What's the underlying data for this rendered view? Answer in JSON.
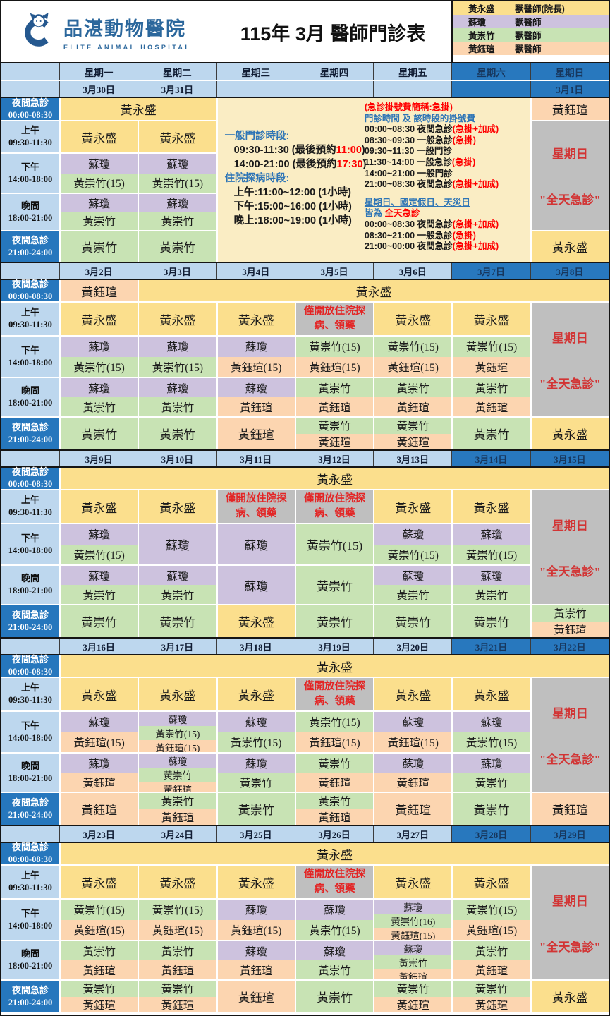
{
  "header": {
    "clinic_name": "品湛動物醫院",
    "clinic_name_en": "ELITE ANIMAL HOSPITAL",
    "title": "115年 3月 醫師門診表",
    "legend": [
      {
        "name": "黃永盛",
        "role": "獸醫師(院長)",
        "color": "yellow"
      },
      {
        "name": "蘇瓊",
        "role": "獸醫師",
        "color": "purple"
      },
      {
        "name": "黃崇竹",
        "role": "獸醫師",
        "color": "green"
      },
      {
        "name": "黃鈺瑄",
        "role": "獸醫師",
        "color": "orange"
      }
    ]
  },
  "palette": {
    "yellow": "#FBDF8D",
    "purple": "#CDC2DE",
    "green": "#C8E3B4",
    "orange": "#FCD5B0",
    "gray": "#BFBFBF",
    "lightblue": "#BDD7EE",
    "darkblue": "#2878BE"
  },
  "weekday_headers": [
    "星期一",
    "星期二",
    "星期三",
    "星期四",
    "星期五",
    "星期六",
    "星期日"
  ],
  "row_labels": [
    {
      "l1": "夜間急診",
      "l2": "00:00-08:30",
      "dark": true
    },
    {
      "l1": "上午",
      "l2": "09:30-11:30",
      "dark": false
    },
    {
      "l1": "下午",
      "l2": "14:00-18:00",
      "dark": false
    },
    {
      "l1": "晚間",
      "l2": "18:00-21:00",
      "dark": false
    },
    {
      "l1": "夜間急診",
      "l2": "21:00-24:00",
      "dark": true
    }
  ],
  "doctors": {
    "Y": {
      "name": "黃永盛",
      "color": "yellow"
    },
    "S": {
      "name": "蘇瓊",
      "color": "purple"
    },
    "C": {
      "name": "黃崇竹",
      "color": "green"
    },
    "C15": {
      "name": "黃崇竹(15)",
      "color": "green"
    },
    "C16": {
      "name": "黃崇竹(16)",
      "color": "green"
    },
    "X": {
      "name": "黃鈺瑄",
      "color": "orange"
    },
    "X15": {
      "name": "黃鈺瑄(15)",
      "color": "orange"
    }
  },
  "cells": {
    "closed_text": "僅開放住院探病、領藥",
    "sunday_lines": [
      "星期日",
      "\"全天急診\""
    ]
  },
  "info_box": {
    "left_lines": [
      {
        "indent": false,
        "spans": [
          [
            "一般門診時段:",
            "blue"
          ]
        ]
      },
      {
        "indent": true,
        "spans": [
          [
            "09:30-11:30 (最後預約",
            "black"
          ],
          [
            "11:00",
            "red"
          ],
          [
            ")",
            "black"
          ]
        ]
      },
      {
        "indent": true,
        "spans": [
          [
            "14:00-21:00 (最後預約",
            "black"
          ],
          [
            "17:30",
            "red"
          ],
          [
            ")",
            "black"
          ]
        ]
      },
      {
        "indent": false,
        "spans": [
          [
            "住院探病時段:",
            "blue"
          ]
        ]
      },
      {
        "indent": true,
        "spans": [
          [
            "上午:11:00~12:00 (1小時)",
            "black"
          ]
        ]
      },
      {
        "indent": true,
        "spans": [
          [
            "下午:15:00~16:00 (1小時)",
            "black"
          ]
        ]
      },
      {
        "indent": true,
        "spans": [
          [
            "晚上:18:00~19:00 (1小時)",
            "black"
          ]
        ]
      }
    ],
    "right_lines": [
      {
        "indent": false,
        "spans": [
          [
            "(急診掛號費簡稱:急掛)",
            "red"
          ]
        ]
      },
      {
        "indent": false,
        "spans": [
          [
            "門診時間 及 該時段的掛號費",
            "blue"
          ]
        ]
      },
      {
        "indent": false,
        "spans": [
          [
            "00:00~08:30 夜間急診",
            "black"
          ],
          [
            "(急掛+加成)",
            "red"
          ]
        ]
      },
      {
        "indent": false,
        "spans": [
          [
            "08:30~09:30 一般急診",
            "black"
          ],
          [
            "(急掛)",
            "red"
          ]
        ]
      },
      {
        "indent": false,
        "spans": [
          [
            "09:30~11:30 一般門診",
            "black"
          ]
        ]
      },
      {
        "indent": false,
        "spans": [
          [
            "11:30~14:00 一般急診",
            "black"
          ],
          [
            "(急掛)",
            "red"
          ]
        ]
      },
      {
        "indent": false,
        "spans": [
          [
            "14:00~21:00 一般門診",
            "black"
          ]
        ]
      },
      {
        "indent": false,
        "spans": [
          [
            "21:00~08:30 夜間急診",
            "black"
          ],
          [
            "(急掛+加成)",
            "red"
          ]
        ]
      },
      {
        "indent": false,
        "spans": []
      },
      {
        "indent": false,
        "spans": [
          [
            "星期日、國定假日、天災日",
            "blueU"
          ]
        ]
      },
      {
        "indent": false,
        "spans": [
          [
            "皆為 ",
            "blue"
          ],
          [
            "全天急診",
            "redU"
          ]
        ]
      },
      {
        "indent": false,
        "spans": [
          [
            "00:00~08:30 夜間急診",
            "black"
          ],
          [
            "(急掛+加成)",
            "red"
          ]
        ]
      },
      {
        "indent": false,
        "spans": [
          [
            "08:30~21:00 一般急診",
            "black"
          ],
          [
            "(急掛)",
            "red"
          ]
        ]
      },
      {
        "indent": false,
        "spans": [
          [
            "21:00~00:00 夜間急診",
            "black"
          ],
          [
            "(急掛+加成)",
            "red"
          ]
        ]
      }
    ]
  },
  "weeks": [
    {
      "dates": [
        "3月30日",
        "3月31日",
        "",
        "",
        "",
        "",
        "3月1日"
      ],
      "rows": [
        [
          {
            "c": 0,
            "s": 2,
            "p": [
              "Y"
            ]
          },
          {
            "c": 2,
            "s": 4,
            "r": 5,
            "t": "info"
          },
          {
            "c": 6,
            "p": [
              "X"
            ]
          }
        ],
        [
          {
            "c": 0,
            "p": [
              "Y"
            ]
          },
          {
            "c": 1,
            "p": [
              "Y"
            ]
          },
          {
            "c": 6,
            "r": 3,
            "t": "sunday"
          }
        ],
        [
          {
            "c": 0,
            "p": [
              "S",
              "C15"
            ]
          },
          {
            "c": 1,
            "p": [
              "S",
              "C15"
            ]
          }
        ],
        [
          {
            "c": 0,
            "p": [
              "S",
              "C"
            ]
          },
          {
            "c": 1,
            "p": [
              "S",
              "C"
            ]
          }
        ],
        [
          {
            "c": 0,
            "p": [
              "C"
            ]
          },
          {
            "c": 1,
            "p": [
              "C"
            ]
          },
          {
            "c": 6,
            "p": [
              "Y"
            ]
          }
        ]
      ]
    },
    {
      "dates": [
        "3月2日",
        "3月3日",
        "3月4日",
        "3月5日",
        "3月6日",
        "3月7日",
        "3月8日"
      ],
      "rows": [
        [
          {
            "c": 0,
            "p": [
              "X"
            ]
          },
          {
            "c": 1,
            "s": 6,
            "p": [
              "Y"
            ]
          }
        ],
        [
          {
            "c": 0,
            "p": [
              "Y"
            ]
          },
          {
            "c": 1,
            "p": [
              "Y"
            ]
          },
          {
            "c": 2,
            "p": [
              "Y"
            ]
          },
          {
            "c": 3,
            "t": "closed"
          },
          {
            "c": 4,
            "p": [
              "Y"
            ]
          },
          {
            "c": 5,
            "p": [
              "Y"
            ]
          },
          {
            "c": 6,
            "r": 3,
            "t": "sunday"
          }
        ],
        [
          {
            "c": 0,
            "p": [
              "S",
              "C15"
            ]
          },
          {
            "c": 1,
            "p": [
              "S",
              "C15"
            ]
          },
          {
            "c": 2,
            "p": [
              "S",
              "X15"
            ]
          },
          {
            "c": 3,
            "p": [
              "C15",
              "X15"
            ]
          },
          {
            "c": 4,
            "p": [
              "C15",
              "X15"
            ]
          },
          {
            "c": 5,
            "p": [
              "C15",
              "X"
            ]
          }
        ],
        [
          {
            "c": 0,
            "p": [
              "S",
              "C"
            ]
          },
          {
            "c": 1,
            "p": [
              "S",
              "C"
            ]
          },
          {
            "c": 2,
            "p": [
              "S",
              "X"
            ]
          },
          {
            "c": 3,
            "p": [
              "C",
              "X"
            ]
          },
          {
            "c": 4,
            "p": [
              "C",
              "X"
            ]
          },
          {
            "c": 5,
            "p": [
              "C",
              "X"
            ]
          }
        ],
        [
          {
            "c": 0,
            "p": [
              "C"
            ]
          },
          {
            "c": 1,
            "p": [
              "C"
            ]
          },
          {
            "c": 2,
            "p": [
              "X"
            ]
          },
          {
            "c": 3,
            "p": [
              "C",
              "X"
            ]
          },
          {
            "c": 4,
            "p": [
              "C",
              "X"
            ]
          },
          {
            "c": 5,
            "p": [
              "C"
            ]
          },
          {
            "c": 6,
            "p": [
              "Y"
            ]
          }
        ]
      ]
    },
    {
      "dates": [
        "3月9日",
        "3月10日",
        "3月11日",
        "3月12日",
        "3月13日",
        "3月14日",
        "3月15日"
      ],
      "rows": [
        [
          {
            "c": 0,
            "s": 7,
            "p": [
              "Y"
            ]
          }
        ],
        [
          {
            "c": 0,
            "p": [
              "Y"
            ]
          },
          {
            "c": 1,
            "p": [
              "Y"
            ]
          },
          {
            "c": 2,
            "t": "closed"
          },
          {
            "c": 3,
            "t": "closed"
          },
          {
            "c": 4,
            "p": [
              "Y"
            ]
          },
          {
            "c": 5,
            "p": [
              "Y"
            ]
          },
          {
            "c": 6,
            "r": 3,
            "t": "sunday"
          }
        ],
        [
          {
            "c": 0,
            "p": [
              "S",
              "C15"
            ]
          },
          {
            "c": 1,
            "p": [
              "S"
            ]
          },
          {
            "c": 2,
            "p": [
              "S"
            ]
          },
          {
            "c": 3,
            "p": [
              "C15"
            ]
          },
          {
            "c": 4,
            "p": [
              "S",
              "C15"
            ]
          },
          {
            "c": 5,
            "p": [
              "S",
              "C15"
            ]
          }
        ],
        [
          {
            "c": 0,
            "p": [
              "S",
              "C"
            ]
          },
          {
            "c": 1,
            "p": [
              "S",
              "C"
            ]
          },
          {
            "c": 2,
            "p": [
              "S"
            ]
          },
          {
            "c": 3,
            "p": [
              "C"
            ]
          },
          {
            "c": 4,
            "p": [
              "S",
              "C"
            ]
          },
          {
            "c": 5,
            "p": [
              "S",
              "C"
            ]
          }
        ],
        [
          {
            "c": 0,
            "p": [
              "C"
            ]
          },
          {
            "c": 1,
            "p": [
              "C"
            ]
          },
          {
            "c": 2,
            "p": [
              "Y"
            ]
          },
          {
            "c": 3,
            "p": [
              "C"
            ]
          },
          {
            "c": 4,
            "p": [
              "C"
            ]
          },
          {
            "c": 5,
            "p": [
              "C"
            ]
          },
          {
            "c": 6,
            "p": [
              "C",
              "X"
            ]
          }
        ]
      ]
    },
    {
      "dates": [
        "3月16日",
        "3月17日",
        "3月18日",
        "3月19日",
        "3月20日",
        "3月21日",
        "3月22日"
      ],
      "rows": [
        [
          {
            "c": 0,
            "s": 7,
            "p": [
              "Y"
            ]
          }
        ],
        [
          {
            "c": 0,
            "p": [
              "Y"
            ]
          },
          {
            "c": 1,
            "p": [
              "Y"
            ]
          },
          {
            "c": 2,
            "p": [
              "Y"
            ]
          },
          {
            "c": 3,
            "t": "closed"
          },
          {
            "c": 4,
            "p": [
              "Y"
            ]
          },
          {
            "c": 5,
            "p": [
              "Y"
            ]
          },
          {
            "c": 6,
            "r": 3,
            "t": "sunday"
          }
        ],
        [
          {
            "c": 0,
            "p": [
              "S",
              "X15"
            ]
          },
          {
            "c": 1,
            "p": [
              "S",
              "C15",
              "X15"
            ]
          },
          {
            "c": 2,
            "p": [
              "S",
              "C15"
            ]
          },
          {
            "c": 3,
            "p": [
              "C15",
              "X15"
            ]
          },
          {
            "c": 4,
            "p": [
              "S",
              "X15"
            ]
          },
          {
            "c": 5,
            "p": [
              "S",
              "C15"
            ]
          }
        ],
        [
          {
            "c": 0,
            "p": [
              "S",
              "X"
            ]
          },
          {
            "c": 1,
            "p": [
              "S",
              "C",
              "X"
            ]
          },
          {
            "c": 2,
            "p": [
              "S",
              "C"
            ]
          },
          {
            "c": 3,
            "p": [
              "C",
              "X"
            ]
          },
          {
            "c": 4,
            "p": [
              "S",
              "X"
            ]
          },
          {
            "c": 5,
            "p": [
              "S",
              "C"
            ]
          }
        ],
        [
          {
            "c": 0,
            "p": [
              "X"
            ]
          },
          {
            "c": 1,
            "p": [
              "C",
              "X"
            ]
          },
          {
            "c": 2,
            "p": [
              "C"
            ]
          },
          {
            "c": 3,
            "p": [
              "C",
              "X"
            ]
          },
          {
            "c": 4,
            "p": [
              "X"
            ]
          },
          {
            "c": 5,
            "p": [
              "C"
            ]
          },
          {
            "c": 6,
            "p": [
              "X"
            ]
          }
        ]
      ]
    },
    {
      "dates": [
        "3月23日",
        "3月24日",
        "3月25日",
        "3月26日",
        "3月27日",
        "3月28日",
        "3月29日"
      ],
      "rows": [
        [
          {
            "c": 0,
            "s": 7,
            "p": [
              "Y"
            ]
          }
        ],
        [
          {
            "c": 0,
            "p": [
              "Y"
            ]
          },
          {
            "c": 1,
            "p": [
              "Y"
            ]
          },
          {
            "c": 2,
            "p": [
              "Y"
            ]
          },
          {
            "c": 3,
            "t": "closed"
          },
          {
            "c": 4,
            "p": [
              "Y"
            ]
          },
          {
            "c": 5,
            "p": [
              "Y"
            ]
          },
          {
            "c": 6,
            "r": 3,
            "t": "sunday"
          }
        ],
        [
          {
            "c": 0,
            "p": [
              "C15",
              "X15"
            ]
          },
          {
            "c": 1,
            "p": [
              "C15",
              "X15"
            ]
          },
          {
            "c": 2,
            "p": [
              "S",
              "X15"
            ]
          },
          {
            "c": 3,
            "p": [
              "S",
              "C15"
            ]
          },
          {
            "c": 4,
            "p": [
              "S",
              "C16",
              "X15"
            ]
          },
          {
            "c": 5,
            "p": [
              "C15",
              "X15"
            ]
          }
        ],
        [
          {
            "c": 0,
            "p": [
              "C",
              "X"
            ]
          },
          {
            "c": 1,
            "p": [
              "C",
              "X"
            ]
          },
          {
            "c": 2,
            "p": [
              "S",
              "X"
            ]
          },
          {
            "c": 3,
            "p": [
              "S",
              "C"
            ]
          },
          {
            "c": 4,
            "p": [
              "S",
              "C",
              "X"
            ]
          },
          {
            "c": 5,
            "p": [
              "C",
              "X"
            ]
          }
        ],
        [
          {
            "c": 0,
            "p": [
              "C",
              "X"
            ]
          },
          {
            "c": 1,
            "p": [
              "C",
              "X"
            ]
          },
          {
            "c": 2,
            "p": [
              "X"
            ]
          },
          {
            "c": 3,
            "p": [
              "C"
            ]
          },
          {
            "c": 4,
            "p": [
              "C",
              "X"
            ]
          },
          {
            "c": 5,
            "p": [
              "C",
              "X"
            ]
          },
          {
            "c": 6,
            "p": [
              "Y"
            ]
          }
        ]
      ]
    }
  ]
}
